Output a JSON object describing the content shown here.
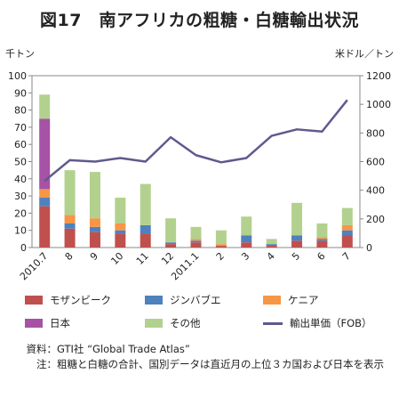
{
  "title": "図17　南アフリカの粗糖・白糖輸出状況",
  "chart_data": {
    "type": "bar",
    "stacked": true,
    "categories": [
      "2010.7",
      "8",
      "9",
      "10",
      "11",
      "12",
      "2011.1",
      "2",
      "3",
      "4",
      "5",
      "6",
      "7"
    ],
    "y_left_unit": "千トン",
    "y_right_unit": "米ドル／トン",
    "y_left_range": [
      0,
      100
    ],
    "y_left_ticks": [
      "0",
      "10",
      "20",
      "30",
      "40",
      "50",
      "60",
      "70",
      "80",
      "90",
      "100"
    ],
    "y_right_range": [
      0,
      1200
    ],
    "y_right_ticks": [
      "0",
      "200",
      "400",
      "600",
      "800",
      "1000",
      "1200"
    ],
    "grid": false,
    "legend_position": "bottom",
    "series": [
      {
        "name": "モザンビーク",
        "color": "#C0504D",
        "values": [
          24,
          11,
          9,
          8,
          8,
          2,
          3,
          1,
          3,
          1,
          4,
          4,
          7
        ]
      },
      {
        "name": "ジンバブエ",
        "color": "#4F81BD",
        "values": [
          5,
          3,
          3,
          2,
          5,
          1,
          1,
          0,
          4,
          1,
          3,
          1,
          3
        ]
      },
      {
        "name": "ケニア",
        "color": "#F79646",
        "values": [
          5,
          5,
          5,
          4,
          0,
          0,
          1,
          1,
          0,
          0,
          0,
          1,
          3
        ]
      },
      {
        "name": "日本",
        "color": "#A652A5",
        "values": [
          41,
          0,
          0,
          0,
          0,
          0,
          0,
          0,
          0,
          0,
          0,
          0,
          0
        ]
      },
      {
        "name": "その他",
        "color": "#B3D18E",
        "values": [
          14,
          26,
          27,
          15,
          24,
          14,
          7,
          8,
          11,
          3,
          19,
          8,
          10
        ]
      }
    ],
    "line_series": {
      "name": "輸出単価（FOB）",
      "color": "#5E5A8E",
      "axis": "right",
      "values": [
        465,
        610,
        600,
        625,
        600,
        770,
        645,
        595,
        625,
        780,
        825,
        810,
        1030
      ]
    }
  },
  "notes": [
    {
      "head": "資料：",
      "text": "GTI社 “Global Trade Atlas”"
    },
    {
      "head": "注：",
      "text": "粗糖と白糖の合計、国別データは直近月の上位３カ国および日本を表示"
    }
  ]
}
